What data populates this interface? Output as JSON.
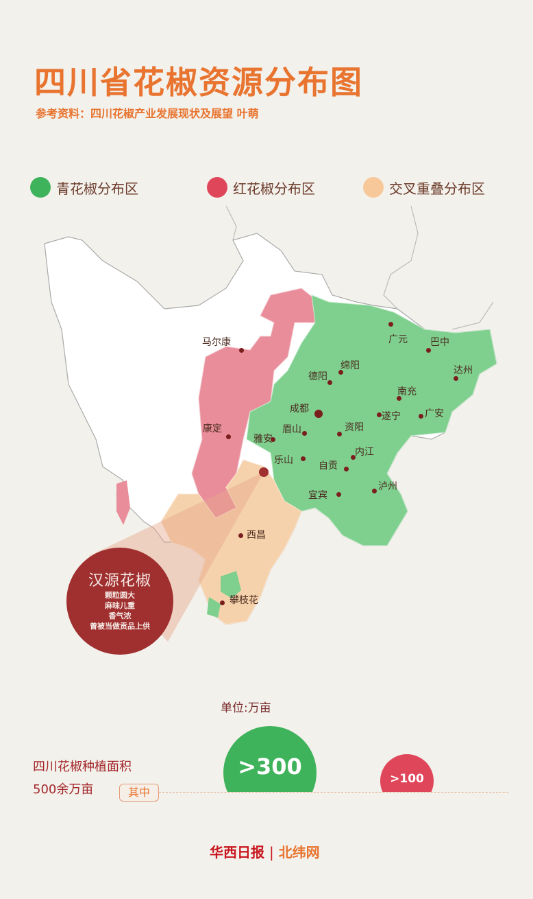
{
  "header": {
    "title": "四川省花椒资源分布图",
    "subtitle": "参考资料：四川花椒产业发展现状及展望 叶萌"
  },
  "legend": [
    {
      "label": "青花椒分布区",
      "color": "#3fb35c"
    },
    {
      "label": "红花椒分布区",
      "color": "#e0465a"
    },
    {
      "label": "交叉重叠分布区",
      "color": "#f7c99a"
    }
  ],
  "map": {
    "colors": {
      "green": "#7fcf8e",
      "red": "#e98d9a",
      "overlap": "#f6d2ac",
      "base": "#ffffff"
    },
    "cities": [
      "马尔康",
      "广元",
      "巴中",
      "达州",
      "绵阳",
      "德阳",
      "南充",
      "成都",
      "遂宁",
      "广安",
      "资阳",
      "眉山",
      "雅安",
      "康定",
      "内江",
      "乐山",
      "自贡",
      "宜宾",
      "泸州",
      "西昌",
      "攀枝花"
    ]
  },
  "callout": {
    "title": "汉源花椒",
    "lines": [
      "颗粒圆大",
      "麻味儿重",
      "香气浓",
      "曾被当做贡品上供"
    ]
  },
  "stats": {
    "unit": "单位:万亩",
    "label_line1": "四川花椒种植面积",
    "label_line2": "500余万亩",
    "tag": "其中",
    "green_value": ">300",
    "red_value": ">100"
  },
  "footer": {
    "brand1": "华西日报",
    "separator": "|",
    "brand2": "北纬网"
  }
}
